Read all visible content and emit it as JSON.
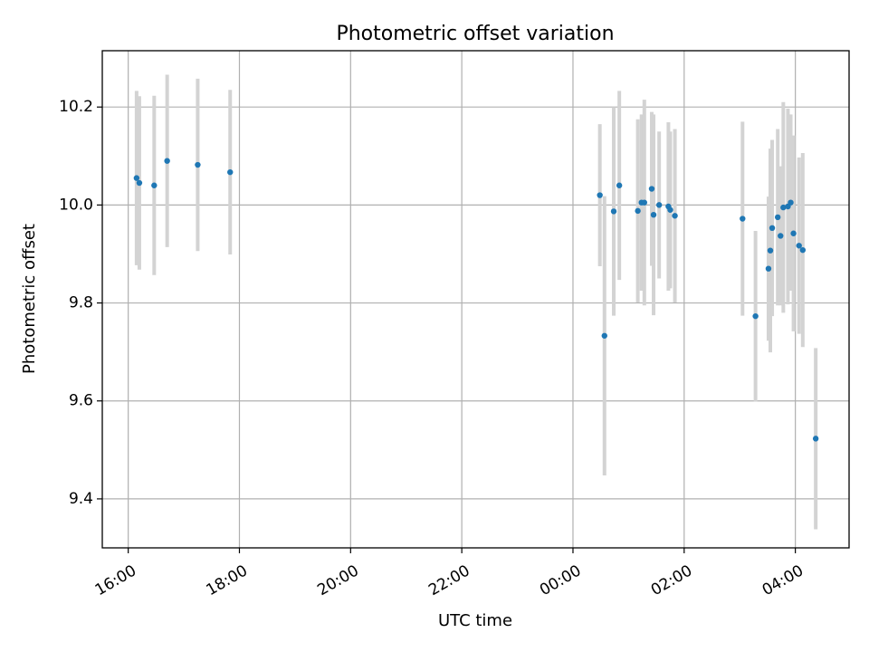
{
  "chart_data": {
    "type": "scatter",
    "title": "Photometric offset variation",
    "xlabel": "UTC time",
    "ylabel": "Photometric offset",
    "x_axis_kind": "time",
    "xlim": [
      "15:32",
      "04:58"
    ],
    "ylim": [
      9.3,
      10.315
    ],
    "grid": true,
    "xticks": [
      {
        "time": "16:00",
        "label": "16:00"
      },
      {
        "time": "18:00",
        "label": "18:00"
      },
      {
        "time": "20:00",
        "label": "20:00"
      },
      {
        "time": "22:00",
        "label": "22:00"
      },
      {
        "time": "00:00",
        "label": "00:00"
      },
      {
        "time": "02:00",
        "label": "02:00"
      },
      {
        "time": "04:00",
        "label": "04:00"
      }
    ],
    "yticks": [
      {
        "value": 9.4,
        "label": "9.4"
      },
      {
        "value": 9.6,
        "label": "9.6"
      },
      {
        "value": 9.8,
        "label": "9.8"
      },
      {
        "value": 10.0,
        "label": "10.0"
      },
      {
        "value": 10.2,
        "label": "10.2"
      }
    ],
    "point_color": "#1f77b4",
    "errorbar_color": "#d3d3d3",
    "points": [
      {
        "x": "16:09",
        "y": 10.055,
        "err": 0.178
      },
      {
        "x": "16:12",
        "y": 10.045,
        "err": 0.177
      },
      {
        "x": "16:28",
        "y": 10.04,
        "err": 0.183
      },
      {
        "x": "16:42",
        "y": 10.09,
        "err": 0.176
      },
      {
        "x": "17:15",
        "y": 10.082,
        "err": 0.176
      },
      {
        "x": "17:50",
        "y": 10.067,
        "err": 0.168
      },
      {
        "x": "00:29",
        "y": 10.02,
        "err": 0.145
      },
      {
        "x": "00:34",
        "y": 9.733,
        "err": 0.285
      },
      {
        "x": "00:44",
        "y": 9.987,
        "err": 0.213
      },
      {
        "x": "00:50",
        "y": 10.04,
        "err": 0.193
      },
      {
        "x": "01:10",
        "y": 9.988,
        "err": 0.187
      },
      {
        "x": "01:14",
        "y": 10.005,
        "err": 0.18
      },
      {
        "x": "01:17",
        "y": 10.005,
        "err": 0.21
      },
      {
        "x": "01:25",
        "y": 10.033,
        "err": 0.157
      },
      {
        "x": "01:27",
        "y": 9.98,
        "err": 0.205
      },
      {
        "x": "01:33",
        "y": 10.0,
        "err": 0.15
      },
      {
        "x": "01:43",
        "y": 9.997,
        "err": 0.172
      },
      {
        "x": "01:45",
        "y": 9.99,
        "err": 0.16
      },
      {
        "x": "01:50",
        "y": 9.978,
        "err": 0.177
      },
      {
        "x": "03:03",
        "y": 9.972,
        "err": 0.198
      },
      {
        "x": "03:17",
        "y": 9.773,
        "err": 0.174
      },
      {
        "x": "03:31",
        "y": 9.87,
        "err": 0.147
      },
      {
        "x": "03:33",
        "y": 9.907,
        "err": 0.208
      },
      {
        "x": "03:35",
        "y": 9.953,
        "err": 0.18
      },
      {
        "x": "03:41",
        "y": 9.975,
        "err": 0.18
      },
      {
        "x": "03:44",
        "y": 9.937,
        "err": 0.142
      },
      {
        "x": "03:47",
        "y": 9.995,
        "err": 0.215
      },
      {
        "x": "03:52",
        "y": 9.997,
        "err": 0.2
      },
      {
        "x": "03:55",
        "y": 10.005,
        "err": 0.18
      },
      {
        "x": "03:58",
        "y": 9.942,
        "err": 0.2
      },
      {
        "x": "04:04",
        "y": 9.917,
        "err": 0.18
      },
      {
        "x": "04:08",
        "y": 9.908,
        "err": 0.198
      },
      {
        "x": "04:22",
        "y": 9.523,
        "err": 0.185
      }
    ]
  }
}
